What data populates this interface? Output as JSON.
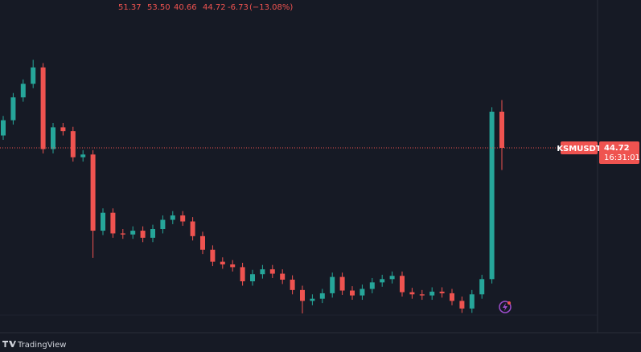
{
  "chart_data": {
    "type": "candlestick",
    "symbol": "KSMUSDT",
    "countdown": "16:31:01",
    "legend": {
      "open": "51.37",
      "high": "53.50",
      "low": "40.66",
      "close": "44.72",
      "change": "-6.73",
      "change_pct": "(−13.08%)"
    },
    "brand": "TradingView",
    "up_color": "#26a69a",
    "down_color": "#ef5350",
    "ylim": [
      14,
      62
    ],
    "open": [
      47.0,
      49.8,
      54.0,
      56.5,
      59.5,
      44.5,
      48.5,
      47.8,
      43.0,
      43.5,
      29.5,
      32.8,
      29.0,
      28.8,
      29.5,
      28.2,
      29.8,
      31.5,
      32.3,
      31.2,
      28.5,
      26.0,
      23.8,
      23.3,
      22.8,
      20.2,
      21.5,
      22.4,
      21.6,
      20.5,
      18.6,
      16.6,
      17.0,
      18.0,
      21.0,
      18.5,
      17.6,
      18.8,
      20.0,
      20.6,
      21.2,
      18.2,
      17.8,
      17.6,
      18.3,
      18.0,
      16.6,
      15.2,
      17.8,
      20.6,
      51.37
    ],
    "high": [
      50.6,
      54.8,
      57.3,
      60.9,
      60.3,
      49.3,
      49.3,
      48.6,
      44.3,
      44.3,
      33.6,
      33.6,
      29.8,
      30.3,
      30.3,
      30.6,
      32.3,
      33.1,
      33.1,
      32.0,
      29.3,
      26.8,
      24.6,
      24.1,
      23.6,
      22.3,
      23.2,
      23.2,
      22.4,
      21.3,
      19.4,
      17.8,
      18.8,
      21.8,
      21.8,
      19.3,
      19.6,
      20.8,
      21.4,
      22.0,
      22.0,
      19.0,
      18.6,
      19.1,
      19.1,
      18.8,
      17.4,
      18.6,
      21.4,
      52.2,
      53.5
    ],
    "low": [
      46.2,
      49.0,
      53.2,
      55.7,
      43.7,
      43.7,
      47.0,
      42.2,
      42.2,
      24.5,
      28.7,
      28.2,
      28.0,
      28.0,
      27.4,
      27.4,
      29.0,
      30.7,
      30.4,
      27.7,
      25.2,
      23.0,
      22.5,
      22.0,
      19.4,
      19.4,
      20.7,
      20.8,
      19.7,
      17.8,
      14.3,
      15.8,
      16.2,
      17.2,
      17.7,
      16.8,
      16.8,
      18.0,
      19.2,
      19.8,
      17.4,
      17.0,
      16.8,
      16.8,
      17.2,
      15.8,
      14.4,
      14.4,
      17.0,
      19.8,
      40.66
    ],
    "close": [
      49.8,
      54.0,
      56.5,
      59.5,
      44.5,
      48.5,
      47.8,
      43.0,
      43.5,
      29.5,
      32.8,
      29.0,
      28.8,
      29.5,
      28.2,
      29.8,
      31.5,
      32.3,
      31.2,
      28.5,
      26.0,
      23.8,
      23.3,
      22.8,
      20.2,
      21.5,
      22.4,
      21.6,
      20.5,
      18.6,
      16.6,
      17.0,
      18.0,
      21.0,
      18.5,
      17.6,
      18.8,
      20.0,
      20.6,
      21.2,
      18.2,
      17.8,
      17.6,
      18.3,
      18.0,
      16.6,
      15.2,
      17.8,
      20.6,
      51.37,
      44.72
    ]
  }
}
